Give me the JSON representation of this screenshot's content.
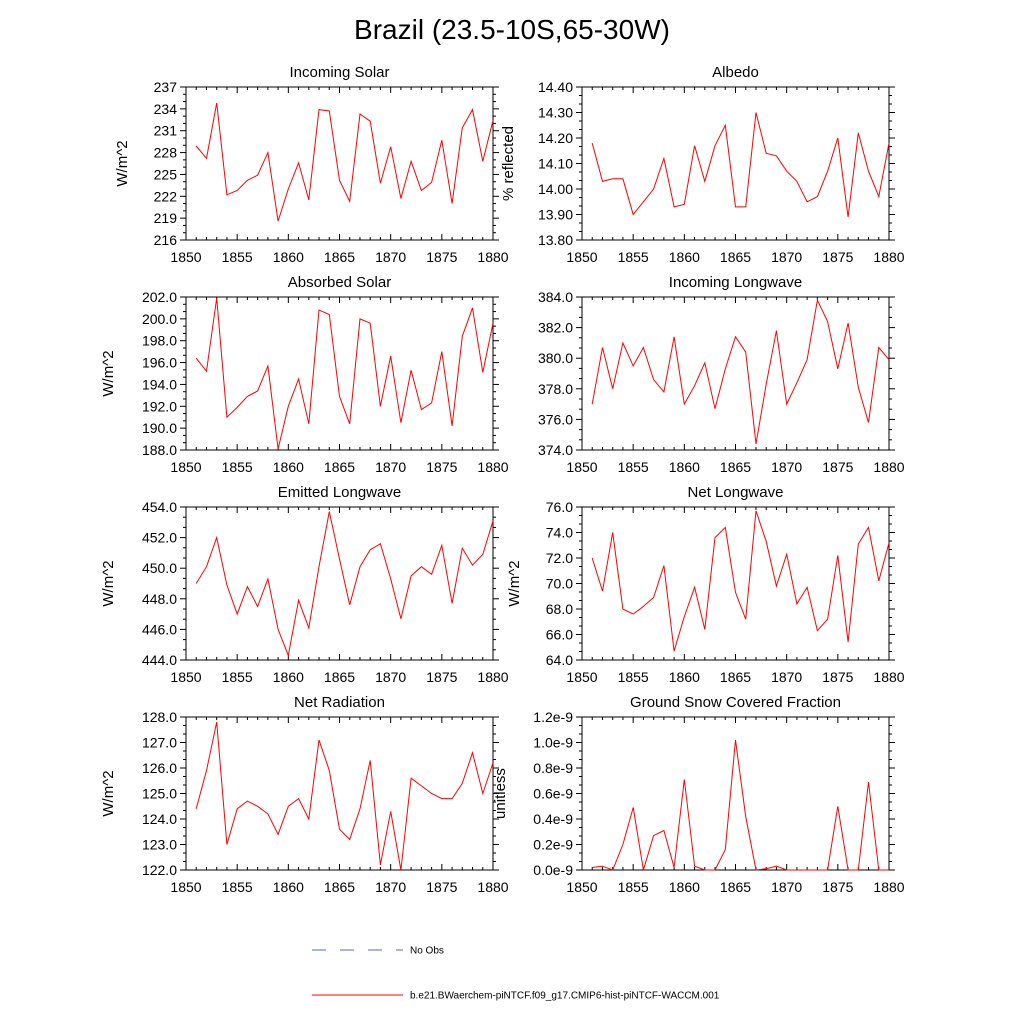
{
  "title": "Brazil (23.5-10S,65-30W)",
  "colors": {
    "model": "#ff0000",
    "obs": "#5566cc",
    "axis": "#000000"
  },
  "legend": {
    "obs_label": "No Obs",
    "model_label": "b.e21.BWaerchem-piNTCF.f09_g17.CMIP6-hist-piNTCF-WACCM.001"
  },
  "chart_data": [
    {
      "type": "line",
      "title": "Incoming Solar",
      "xlabel": "",
      "ylabel": "W/m^2",
      "xlim": [
        1850,
        1880
      ],
      "ylim": [
        216,
        237
      ],
      "xticks": [
        1850,
        1855,
        1860,
        1865,
        1870,
        1875,
        1880
      ],
      "yticks": [
        "216",
        "219",
        "222",
        "225",
        "228",
        "231",
        "234",
        "237"
      ],
      "x": [
        1851,
        1852,
        1853,
        1854,
        1855,
        1856,
        1857,
        1858,
        1859,
        1860,
        1861,
        1862,
        1863,
        1864,
        1865,
        1866,
        1867,
        1868,
        1869,
        1870,
        1871,
        1872,
        1873,
        1874,
        1875,
        1876,
        1877,
        1878,
        1879,
        1880
      ],
      "series": [
        {
          "name": "b.e21.BWaerchem-piNTCF.f09_g17.CMIP6-hist-piNTCF-WACCM.001",
          "values": [
            228.9,
            227.2,
            234.8,
            222.2,
            222.8,
            224.2,
            224.9,
            228.0,
            218.6,
            223.0,
            226.6,
            221.5,
            233.9,
            233.7,
            224.2,
            221.3,
            233.3,
            232.3,
            223.8,
            228.8,
            221.7,
            226.8,
            222.8,
            223.9,
            229.7,
            221.0,
            231.4,
            233.9,
            226.8,
            232.4
          ]
        }
      ]
    },
    {
      "type": "line",
      "title": "Albedo",
      "xlabel": "",
      "ylabel": "% reflected",
      "xlim": [
        1850,
        1880
      ],
      "ylim": [
        13.8,
        14.4
      ],
      "xticks": [
        1850,
        1855,
        1860,
        1865,
        1870,
        1875,
        1880
      ],
      "yticks": [
        "13.80",
        "13.90",
        "14.00",
        "14.10",
        "14.20",
        "14.30",
        "14.40"
      ],
      "x": [
        1851,
        1852,
        1853,
        1854,
        1855,
        1856,
        1857,
        1858,
        1859,
        1860,
        1861,
        1862,
        1863,
        1864,
        1865,
        1866,
        1867,
        1868,
        1869,
        1870,
        1871,
        1872,
        1873,
        1874,
        1875,
        1876,
        1877,
        1878,
        1879,
        1880
      ],
      "series": [
        {
          "name": "b.e21.BWaerchem-piNTCF.f09_g17.CMIP6-hist-piNTCF-WACCM.001",
          "values": [
            14.18,
            14.03,
            14.04,
            14.04,
            13.9,
            13.95,
            14.0,
            14.12,
            13.93,
            13.94,
            14.17,
            14.03,
            14.17,
            14.25,
            13.93,
            13.93,
            14.3,
            14.14,
            14.13,
            14.07,
            14.03,
            13.95,
            13.97,
            14.07,
            14.2,
            13.89,
            14.22,
            14.07,
            13.97,
            14.18
          ]
        }
      ]
    },
    {
      "type": "line",
      "title": "Absorbed Solar",
      "xlabel": "",
      "ylabel": "W/m^2",
      "xlim": [
        1850,
        1880
      ],
      "ylim": [
        188.0,
        202.0
      ],
      "xticks": [
        1850,
        1855,
        1860,
        1865,
        1870,
        1875,
        1880
      ],
      "yticks": [
        "188.0",
        "190.0",
        "192.0",
        "194.0",
        "196.0",
        "198.0",
        "200.0",
        "202.0"
      ],
      "x": [
        1851,
        1852,
        1853,
        1854,
        1855,
        1856,
        1857,
        1858,
        1859,
        1860,
        1861,
        1862,
        1863,
        1864,
        1865,
        1866,
        1867,
        1868,
        1869,
        1870,
        1871,
        1872,
        1873,
        1874,
        1875,
        1876,
        1877,
        1878,
        1879,
        1880
      ],
      "series": [
        {
          "name": "b.e21.BWaerchem-piNTCF.f09_g17.CMIP6-hist-piNTCF-WACCM.001",
          "values": [
            196.4,
            195.2,
            201.9,
            191.0,
            191.9,
            192.9,
            193.4,
            195.7,
            188.1,
            192.0,
            194.5,
            190.4,
            200.8,
            200.4,
            192.9,
            190.4,
            200.0,
            199.6,
            192.0,
            196.6,
            190.5,
            195.3,
            191.7,
            192.3,
            197.0,
            190.2,
            198.4,
            201.0,
            195.1,
            199.6
          ]
        }
      ]
    },
    {
      "type": "line",
      "title": "Incoming Longwave",
      "xlabel": "",
      "ylabel": "",
      "xlim": [
        1850,
        1880
      ],
      "ylim": [
        374.0,
        384.0
      ],
      "xticks": [
        1850,
        1855,
        1860,
        1865,
        1870,
        1875,
        1880
      ],
      "yticks": [
        "374.0",
        "376.0",
        "378.0",
        "380.0",
        "382.0",
        "384.0"
      ],
      "x": [
        1851,
        1852,
        1853,
        1854,
        1855,
        1856,
        1857,
        1858,
        1859,
        1860,
        1861,
        1862,
        1863,
        1864,
        1865,
        1866,
        1867,
        1868,
        1869,
        1870,
        1871,
        1872,
        1873,
        1874,
        1875,
        1876,
        1877,
        1878,
        1879,
        1880
      ],
      "series": [
        {
          "name": "b.e21.BWaerchem-piNTCF.f09_g17.CMIP6-hist-piNTCF-WACCM.001",
          "values": [
            377.0,
            380.7,
            378.0,
            381.0,
            379.5,
            380.7,
            378.6,
            377.8,
            381.4,
            377.0,
            378.2,
            379.7,
            376.7,
            379.3,
            381.4,
            380.4,
            374.4,
            378.3,
            381.8,
            377.0,
            378.4,
            379.9,
            383.8,
            382.4,
            379.3,
            382.3,
            378.1,
            375.8,
            380.7,
            379.9
          ]
        }
      ]
    },
    {
      "type": "line",
      "title": "Emitted Longwave",
      "xlabel": "",
      "ylabel": "W/m^2",
      "xlim": [
        1850,
        1880
      ],
      "ylim": [
        444.0,
        454.0
      ],
      "xticks": [
        1850,
        1855,
        1860,
        1865,
        1870,
        1875,
        1880
      ],
      "yticks": [
        "444.0",
        "446.0",
        "448.0",
        "450.0",
        "452.0",
        "454.0"
      ],
      "x": [
        1851,
        1852,
        1853,
        1854,
        1855,
        1856,
        1857,
        1858,
        1859,
        1860,
        1861,
        1862,
        1863,
        1864,
        1865,
        1866,
        1867,
        1868,
        1869,
        1870,
        1871,
        1872,
        1873,
        1874,
        1875,
        1876,
        1877,
        1878,
        1879,
        1880
      ],
      "series": [
        {
          "name": "b.e21.BWaerchem-piNTCF.f09_g17.CMIP6-hist-piNTCF-WACCM.001",
          "values": [
            449.0,
            450.1,
            452.0,
            448.9,
            447.0,
            448.8,
            447.5,
            449.3,
            446.0,
            444.3,
            447.9,
            446.1,
            450.1,
            453.7,
            450.6,
            447.6,
            450.1,
            451.2,
            451.6,
            449.3,
            446.7,
            449.5,
            450.1,
            449.6,
            451.5,
            447.7,
            451.3,
            450.2,
            450.9,
            453.1
          ]
        }
      ]
    },
    {
      "type": "line",
      "title": "Net Longwave",
      "xlabel": "",
      "ylabel": "W/m^2",
      "xlim": [
        1850,
        1880
      ],
      "ylim": [
        64.0,
        76.0
      ],
      "xticks": [
        1850,
        1855,
        1860,
        1865,
        1870,
        1875,
        1880
      ],
      "yticks": [
        "64.0",
        "66.0",
        "68.0",
        "70.0",
        "72.0",
        "74.0",
        "76.0"
      ],
      "x": [
        1851,
        1852,
        1853,
        1854,
        1855,
        1856,
        1857,
        1858,
        1859,
        1860,
        1861,
        1862,
        1863,
        1864,
        1865,
        1866,
        1867,
        1868,
        1869,
        1870,
        1871,
        1872,
        1873,
        1874,
        1875,
        1876,
        1877,
        1878,
        1879,
        1880
      ],
      "series": [
        {
          "name": "b.e21.BWaerchem-piNTCF.f09_g17.CMIP6-hist-piNTCF-WACCM.001",
          "values": [
            72.0,
            69.4,
            74.0,
            68.0,
            67.6,
            68.2,
            68.9,
            71.4,
            64.7,
            67.4,
            69.7,
            66.4,
            73.6,
            74.4,
            69.3,
            67.2,
            75.7,
            73.3,
            69.8,
            72.3,
            68.4,
            69.7,
            66.3,
            67.2,
            72.2,
            65.4,
            73.1,
            74.4,
            70.2,
            73.2
          ]
        }
      ]
    },
    {
      "type": "line",
      "title": "Net Radiation",
      "xlabel": "",
      "ylabel": "W/m^2",
      "xlim": [
        1850,
        1880
      ],
      "ylim": [
        122.0,
        128.0
      ],
      "xticks": [
        1850,
        1855,
        1860,
        1865,
        1870,
        1875,
        1880
      ],
      "yticks": [
        "122.0",
        "123.0",
        "124.0",
        "125.0",
        "126.0",
        "127.0",
        "128.0"
      ],
      "x": [
        1851,
        1852,
        1853,
        1854,
        1855,
        1856,
        1857,
        1858,
        1859,
        1860,
        1861,
        1862,
        1863,
        1864,
        1865,
        1866,
        1867,
        1868,
        1869,
        1870,
        1871,
        1872,
        1873,
        1874,
        1875,
        1876,
        1877,
        1878,
        1879,
        1880
      ],
      "series": [
        {
          "name": "b.e21.BWaerchem-piNTCF.f09_g17.CMIP6-hist-piNTCF-WACCM.001",
          "values": [
            124.4,
            125.9,
            127.8,
            123.0,
            124.4,
            124.7,
            124.5,
            124.2,
            123.4,
            124.5,
            124.8,
            124.0,
            127.1,
            125.9,
            123.6,
            123.2,
            124.4,
            126.3,
            122.2,
            124.3,
            122.0,
            125.6,
            125.3,
            125.0,
            124.8,
            124.8,
            125.4,
            126.6,
            125.0,
            126.2
          ]
        }
      ]
    },
    {
      "type": "line",
      "title": "Ground Snow Covered Fraction",
      "xlabel": "",
      "ylabel": "unitless",
      "xlim": [
        1850,
        1880
      ],
      "ylim": [
        0,
        1.2e-09
      ],
      "xticks": [
        1850,
        1855,
        1860,
        1865,
        1870,
        1875,
        1880
      ],
      "yticks": [
        "0.0e-9",
        "0.2e-9",
        "0.4e-9",
        "0.6e-9",
        "0.8e-9",
        "1.0e-9",
        "1.2e-9"
      ],
      "x": [
        1851,
        1852,
        1853,
        1854,
        1855,
        1856,
        1857,
        1858,
        1859,
        1860,
        1861,
        1862,
        1863,
        1864,
        1865,
        1866,
        1867,
        1868,
        1869,
        1870,
        1871,
        1872,
        1873,
        1874,
        1875,
        1876,
        1877,
        1878,
        1879,
        1880
      ],
      "series": [
        {
          "name": "b.e21.BWaerchem-piNTCF.f09_g17.CMIP6-hist-piNTCF-WACCM.001",
          "values": [
            2e-11,
            3e-11,
            0.0,
            2e-10,
            4.9e-10,
            0.0,
            2.7e-10,
            3.1e-10,
            2e-11,
            7.1e-10,
            3e-11,
            0.0,
            0.0,
            1.6e-10,
            1.02e-09,
            4.2e-10,
            0.0,
            1e-11,
            3e-11,
            0.0,
            0.0,
            0.0,
            0.0,
            0.0,
            5e-10,
            0.0,
            0.0,
            6.9e-10,
            0.0,
            0.0
          ]
        }
      ]
    }
  ]
}
